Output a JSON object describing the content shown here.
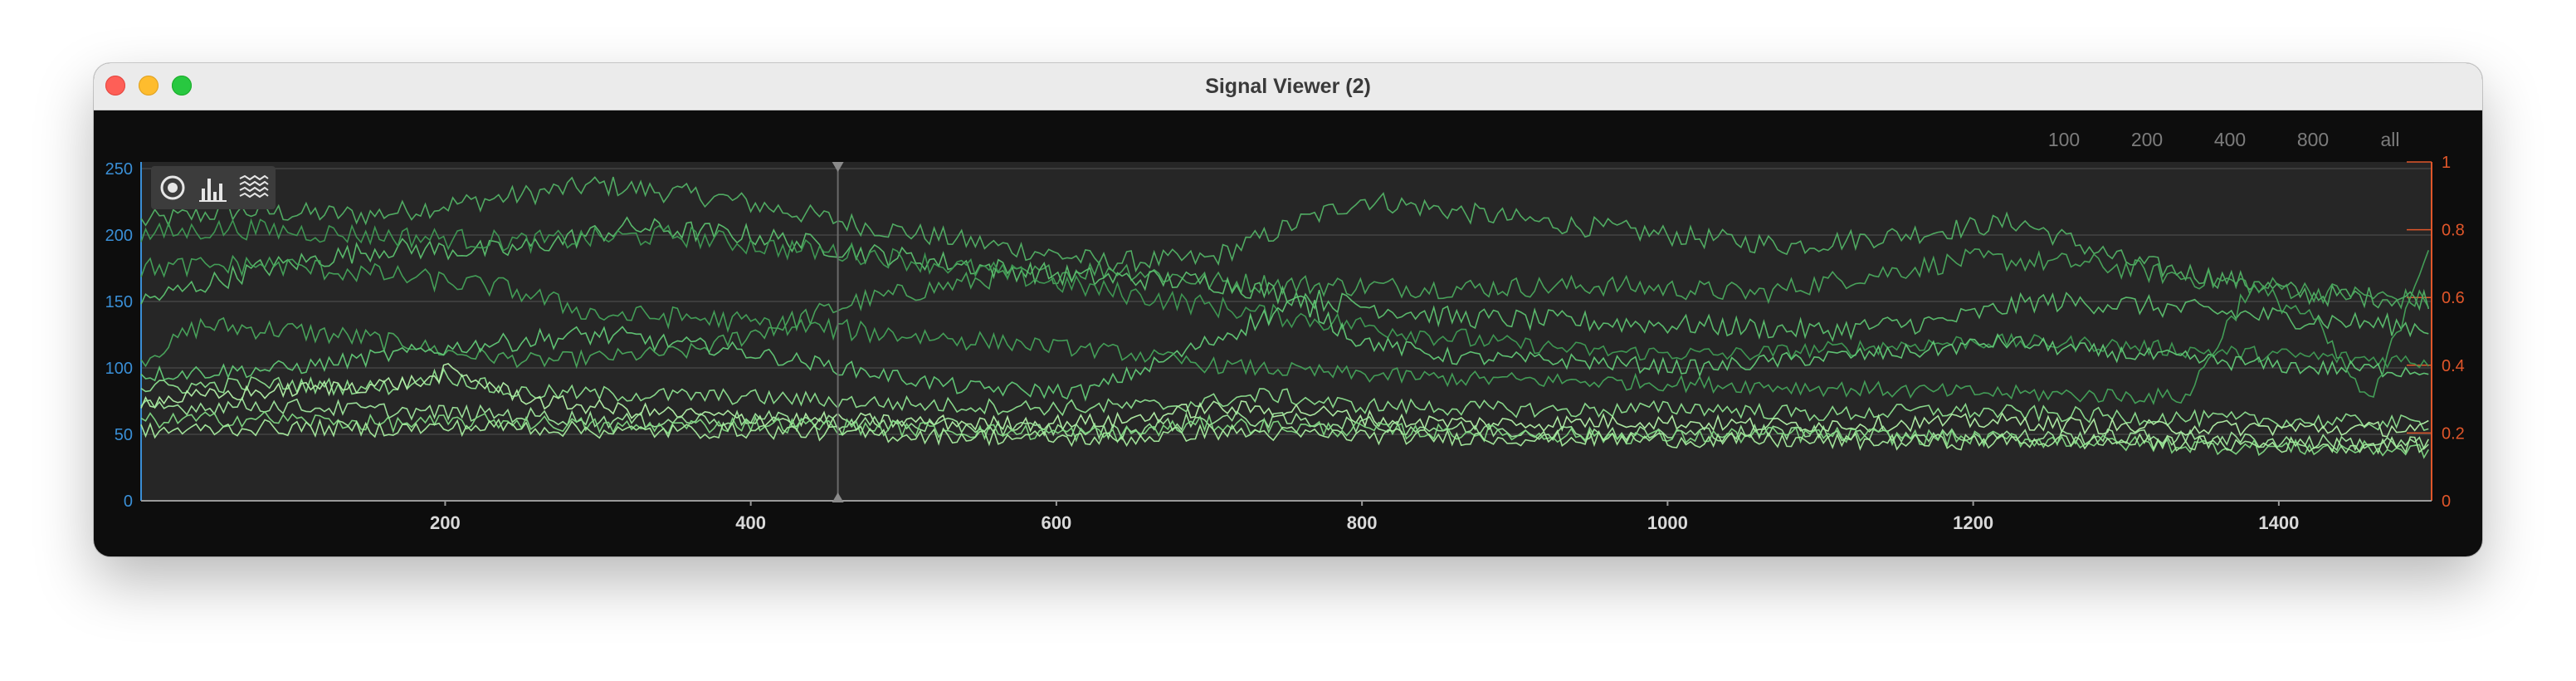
{
  "window": {
    "title": "Signal Viewer (2)"
  },
  "range_buttons": [
    "100",
    "200",
    "400",
    "800",
    "all"
  ],
  "toolbar": {
    "tools": [
      {
        "icon": "target-icon"
      },
      {
        "icon": "bar-chart-icon"
      },
      {
        "icon": "waveform-icon"
      }
    ]
  },
  "chart_data": {
    "type": "line",
    "xlim": [
      1,
      1500
    ],
    "x_ticks": [
      200,
      400,
      600,
      800,
      1000,
      1200,
      1400
    ],
    "y_left": {
      "ylim": [
        0,
        255
      ],
      "ticks": [
        0,
        50,
        100,
        150,
        200,
        250
      ],
      "color": "#3a8fd6"
    },
    "y_right": {
      "ylim": [
        0,
        1
      ],
      "ticks": [
        "0",
        "0.2",
        "0.4",
        "0.6",
        "0.8",
        "1"
      ],
      "color": "#e0562a"
    },
    "cursor_x": 457,
    "grid": true,
    "legend": "none",
    "series": [
      {
        "color": "#52b165",
        "points": [
          [
            1,
            210
          ],
          [
            60,
            218
          ],
          [
            150,
            215
          ],
          [
            250,
            230
          ],
          [
            300,
            238
          ],
          [
            380,
            228
          ],
          [
            470,
            208
          ],
          [
            560,
            192
          ],
          [
            630,
            180
          ],
          [
            700,
            182
          ],
          [
            760,
            210
          ],
          [
            800,
            227
          ],
          [
            900,
            212
          ],
          [
            1000,
            200
          ],
          [
            1080,
            192
          ],
          [
            1150,
            200
          ],
          [
            1230,
            210
          ],
          [
            1300,
            180
          ],
          [
            1360,
            168
          ],
          [
            1420,
            155
          ],
          [
            1500,
            152
          ]
        ]
      },
      {
        "color": "#4aa85d",
        "points": [
          [
            1,
            105
          ],
          [
            40,
            132
          ],
          [
            100,
            128
          ],
          [
            180,
            118
          ],
          [
            200,
            112
          ],
          [
            260,
            105
          ],
          [
            360,
            112
          ],
          [
            470,
            150
          ],
          [
            560,
            168
          ],
          [
            640,
            175
          ],
          [
            700,
            165
          ],
          [
            780,
            162
          ],
          [
            860,
            160
          ],
          [
            960,
            162
          ],
          [
            1060,
            156
          ],
          [
            1120,
            168
          ],
          [
            1200,
            182
          ],
          [
            1280,
            178
          ],
          [
            1340,
            168
          ],
          [
            1420,
            158
          ],
          [
            1500,
            150
          ]
        ]
      },
      {
        "color": "#5cc06f",
        "points": [
          [
            1,
            150
          ],
          [
            80,
            175
          ],
          [
            160,
            190
          ],
          [
            240,
            188
          ],
          [
            320,
            206
          ],
          [
            400,
            200
          ],
          [
            480,
            186
          ],
          [
            560,
            175
          ],
          [
            620,
            168
          ],
          [
            700,
            165
          ],
          [
            780,
            150
          ],
          [
            860,
            138
          ],
          [
            940,
            135
          ],
          [
            1020,
            132
          ],
          [
            1100,
            128
          ],
          [
            1180,
            135
          ],
          [
            1240,
            150
          ],
          [
            1300,
            148
          ],
          [
            1380,
            140
          ],
          [
            1440,
            135
          ],
          [
            1500,
            130
          ]
        ]
      },
      {
        "color": "#3f9b54",
        "points": [
          [
            1,
            200
          ],
          [
            60,
            205
          ],
          [
            150,
            200
          ],
          [
            250,
            195
          ],
          [
            350,
            200
          ],
          [
            420,
            190
          ],
          [
            480,
            185
          ],
          [
            560,
            172
          ],
          [
            620,
            160
          ],
          [
            680,
            150
          ],
          [
            740,
            140
          ],
          [
            800,
            132
          ],
          [
            880,
            120
          ],
          [
            960,
            112
          ],
          [
            1040,
            110
          ],
          [
            1120,
            115
          ],
          [
            1200,
            120
          ],
          [
            1280,
            118
          ],
          [
            1360,
            112
          ],
          [
            1430,
            108
          ],
          [
            1500,
            105
          ]
        ]
      },
      {
        "color": "#62c977",
        "points": [
          [
            1,
            95
          ],
          [
            100,
            100
          ],
          [
            180,
            112
          ],
          [
            240,
            120
          ],
          [
            300,
            125
          ],
          [
            380,
            115
          ],
          [
            460,
            100
          ],
          [
            540,
            85
          ],
          [
            620,
            82
          ],
          [
            680,
            110
          ],
          [
            720,
            130
          ],
          [
            760,
            150
          ],
          [
            800,
            120
          ],
          [
            860,
            108
          ],
          [
            940,
            105
          ],
          [
            1020,
            100
          ],
          [
            1100,
            108
          ],
          [
            1160,
            112
          ],
          [
            1220,
            120
          ],
          [
            1280,
            112
          ],
          [
            1360,
            105
          ],
          [
            1420,
            100
          ],
          [
            1500,
            98
          ]
        ]
      },
      {
        "color": "#44a35a",
        "points": [
          [
            1,
            175
          ],
          [
            80,
            178
          ],
          [
            160,
            170
          ],
          [
            240,
            160
          ],
          [
            300,
            140
          ],
          [
            360,
            138
          ],
          [
            420,
            132
          ],
          [
            500,
            125
          ],
          [
            580,
            118
          ],
          [
            640,
            112
          ],
          [
            700,
            102
          ],
          [
            780,
            96
          ],
          [
            860,
            92
          ],
          [
            940,
            90
          ],
          [
            1020,
            88
          ],
          [
            1100,
            85
          ],
          [
            1180,
            82
          ],
          [
            1260,
            80
          ],
          [
            1340,
            78
          ],
          [
            1380,
            160
          ],
          [
            1420,
            140
          ],
          [
            1460,
            72
          ],
          [
            1500,
            200
          ]
        ]
      },
      {
        "color": "#8ddf8f",
        "points": [
          [
            1,
            85
          ],
          [
            80,
            88
          ],
          [
            160,
            85
          ],
          [
            200,
            95
          ],
          [
            240,
            82
          ],
          [
            320,
            80
          ],
          [
            400,
            78
          ],
          [
            460,
            75
          ],
          [
            520,
            72
          ],
          [
            600,
            70
          ],
          [
            680,
            72
          ],
          [
            740,
            80
          ],
          [
            790,
            72
          ],
          [
            860,
            70
          ],
          [
            940,
            68
          ],
          [
            1020,
            70
          ],
          [
            1100,
            65
          ],
          [
            1180,
            68
          ],
          [
            1260,
            65
          ],
          [
            1340,
            62
          ],
          [
            1420,
            60
          ],
          [
            1500,
            58
          ]
        ]
      },
      {
        "color": "#b3f0a8",
        "points": [
          [
            1,
            75
          ],
          [
            60,
            80
          ],
          [
            120,
            85
          ],
          [
            190,
            90
          ],
          [
            200,
            98
          ],
          [
            260,
            75
          ],
          [
            320,
            68
          ],
          [
            400,
            62
          ],
          [
            480,
            60
          ],
          [
            560,
            58
          ],
          [
            640,
            60
          ],
          [
            700,
            70
          ],
          [
            760,
            68
          ],
          [
            820,
            60
          ],
          [
            900,
            58
          ],
          [
            980,
            60
          ],
          [
            1060,
            57
          ],
          [
            1140,
            58
          ],
          [
            1220,
            60
          ],
          [
            1300,
            55
          ],
          [
            1380,
            55
          ],
          [
            1460,
            54
          ],
          [
            1500,
            55
          ]
        ]
      },
      {
        "color": "#9fe69d",
        "points": [
          [
            1,
            70
          ],
          [
            80,
            72
          ],
          [
            160,
            68
          ],
          [
            240,
            65
          ],
          [
            320,
            60
          ],
          [
            400,
            62
          ],
          [
            480,
            58
          ],
          [
            560,
            55
          ],
          [
            640,
            52
          ],
          [
            700,
            62
          ],
          [
            760,
            60
          ],
          [
            840,
            55
          ],
          [
            920,
            52
          ],
          [
            1000,
            50
          ],
          [
            1080,
            52
          ],
          [
            1160,
            50
          ],
          [
            1240,
            48
          ],
          [
            1320,
            48
          ],
          [
            1400,
            45
          ],
          [
            1500,
            42
          ]
        ]
      },
      {
        "color": "#7fd783",
        "points": [
          [
            1,
            60
          ],
          [
            80,
            62
          ],
          [
            160,
            58
          ],
          [
            240,
            60
          ],
          [
            320,
            55
          ],
          [
            400,
            58
          ],
          [
            480,
            55
          ],
          [
            560,
            52
          ],
          [
            640,
            50
          ],
          [
            700,
            58
          ],
          [
            760,
            55
          ],
          [
            840,
            52
          ],
          [
            920,
            50
          ],
          [
            1000,
            48
          ],
          [
            1080,
            50
          ],
          [
            1160,
            48
          ],
          [
            1240,
            46
          ],
          [
            1320,
            42
          ],
          [
            1400,
            40
          ],
          [
            1500,
            38
          ]
        ]
      },
      {
        "color": "#a8ec9f",
        "points": [
          [
            1,
            52
          ],
          [
            80,
            55
          ],
          [
            160,
            54
          ],
          [
            240,
            56
          ],
          [
            320,
            52
          ],
          [
            400,
            53
          ],
          [
            480,
            50
          ],
          [
            560,
            48
          ],
          [
            640,
            46
          ],
          [
            700,
            52
          ],
          [
            760,
            50
          ],
          [
            840,
            48
          ],
          [
            920,
            47
          ],
          [
            1000,
            46
          ],
          [
            1080,
            45
          ],
          [
            1160,
            44
          ],
          [
            1240,
            45
          ],
          [
            1320,
            44
          ],
          [
            1400,
            42
          ],
          [
            1500,
            42
          ]
        ]
      }
    ]
  }
}
